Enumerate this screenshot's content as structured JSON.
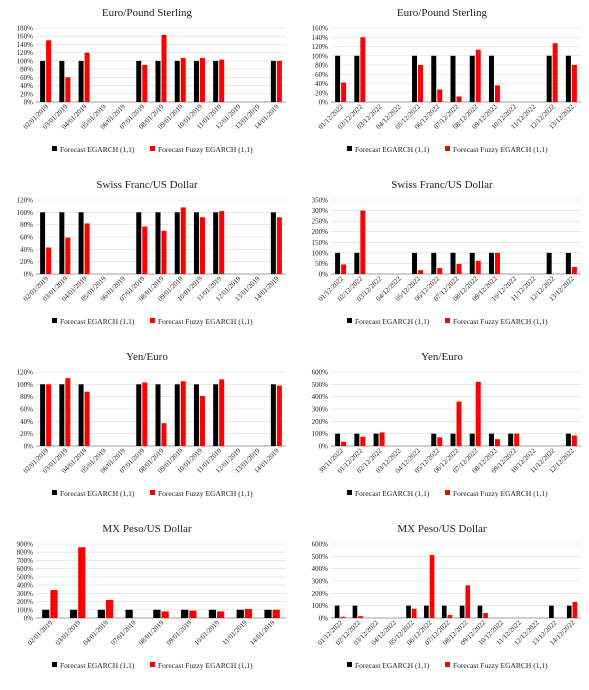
{
  "colors": {
    "egarch": "#000000",
    "fuzzy": "#ff0000",
    "grid": "#d9d9d9",
    "axis": "#7f7f7f"
  },
  "chart_data": [
    {
      "type": "bar",
      "title": "Euro/Pound Sterling",
      "categories": [
        "02/01/2019",
        "03/01/2019",
        "04/01/2019",
        "05/01/2019",
        "06/01/2019",
        "07/01/2019",
        "08/01/2019",
        "09/01/2019",
        "10/01/2019",
        "11/01/2019",
        "12/01/2019",
        "13/01/2019",
        "14/01/2019"
      ],
      "yticks": [
        "0%",
        "20%",
        "40%",
        "60%",
        "80%",
        "100%",
        "120%",
        "140%",
        "160%",
        "180%"
      ],
      "ylim": [
        0,
        180
      ],
      "series": [
        {
          "name": "Forecast EGARCH (1,1)",
          "values": [
            100,
            100,
            100,
            null,
            null,
            100,
            100,
            100,
            100,
            100,
            null,
            null,
            100
          ]
        },
        {
          "name": "Forecast Fuzzy EGARCH (1,1)",
          "values": [
            150,
            60,
            120,
            null,
            null,
            90,
            163,
            107,
            107,
            103,
            null,
            null,
            100
          ]
        }
      ],
      "legend": "bottom"
    },
    {
      "type": "bar",
      "title": "Euro/Pound Sterling",
      "categories": [
        "01/12/2022",
        "02/12/2022",
        "03/12/2022",
        "04/12/2022",
        "05/12/2022",
        "06/12/2022",
        "07/12/2022",
        "08/12/2022",
        "09/12/2022",
        "10/12/2022",
        "11/12/2022",
        "12/12/2022",
        "13/12/2022"
      ],
      "yticks": [
        "0%",
        "20%",
        "40%",
        "60%",
        "80%",
        "100%",
        "120%",
        "140%",
        "160%"
      ],
      "ylim": [
        0,
        160
      ],
      "series": [
        {
          "name": "Forecast EGARCH (1,1)",
          "values": [
            100,
            100,
            null,
            null,
            100,
            100,
            100,
            100,
            100,
            null,
            null,
            100,
            100
          ]
        },
        {
          "name": "Forecast Fuzzy EGARCH (1,1)",
          "values": [
            42,
            140,
            null,
            null,
            80,
            27,
            12,
            113,
            36,
            null,
            null,
            127,
            80
          ]
        }
      ],
      "legend": "bottom"
    },
    {
      "type": "bar",
      "title": "Swiss Franc/US Dollar",
      "categories": [
        "02/01/2019",
        "03/01/2019",
        "04/01/2019",
        "05/01/2019",
        "06/01/2019",
        "07/01/2019",
        "08/01/2019",
        "09/01/2019",
        "10/01/2019",
        "11/01/2019",
        "12/01/2019",
        "13/01/2019",
        "14/01/2019"
      ],
      "yticks": [
        "0%",
        "20%",
        "40%",
        "60%",
        "80%",
        "100%",
        "120%"
      ],
      "ylim": [
        0,
        120
      ],
      "series": [
        {
          "name": "Forecast EGARCH (1,1)",
          "values": [
            100,
            100,
            100,
            null,
            null,
            100,
            100,
            100,
            100,
            100,
            null,
            null,
            100
          ]
        },
        {
          "name": "Forecast Fuzzy EGARCH (1,1)",
          "values": [
            43,
            59,
            82,
            null,
            null,
            77,
            70,
            108,
            92,
            102,
            null,
            null,
            92
          ]
        }
      ],
      "legend": "bottom"
    },
    {
      "type": "bar",
      "title": "Swiss Franc/US Dollar",
      "categories": [
        "01/12/2022",
        "02/12/2022",
        "03/12/2022",
        "04/12/2022",
        "05/12/2022",
        "06/12/2022",
        "07/12/2022",
        "08/12/2022",
        "09/12/2022",
        "10/12/2022",
        "11/12/2022",
        "12/12/2022",
        "13/12/2022"
      ],
      "yticks": [
        "0%",
        "50%",
        "100%",
        "150%",
        "200%",
        "250%",
        "300%",
        "350%"
      ],
      "ylim": [
        0,
        350
      ],
      "series": [
        {
          "name": "Forecast EGARCH (1,1)",
          "values": [
            100,
            100,
            null,
            null,
            100,
            100,
            100,
            100,
            100,
            null,
            null,
            100,
            100
          ]
        },
        {
          "name": "Forecast Fuzzy EGARCH (1,1)",
          "values": [
            45,
            300,
            null,
            null,
            18,
            28,
            47,
            62,
            100,
            null,
            null,
            null,
            33
          ]
        }
      ],
      "legend": "bottom"
    },
    {
      "type": "bar",
      "title": "Yen/Euro",
      "categories": [
        "02/01/2019",
        "03/01/2019",
        "04/01/2019",
        "05/01/2019",
        "06/01/2019",
        "07/01/2019",
        "08/01/2019",
        "09/01/2019",
        "10/01/2019",
        "11/01/2019",
        "12/01/2019",
        "13/01/2019",
        "14/01/2019"
      ],
      "yticks": [
        "0%",
        "20%",
        "40%",
        "60%",
        "80%",
        "100%",
        "120%"
      ],
      "ylim": [
        0,
        120
      ],
      "series": [
        {
          "name": "Forecast EGARCH (1,1)",
          "values": [
            100,
            100,
            100,
            null,
            null,
            100,
            100,
            100,
            100,
            100,
            null,
            null,
            100
          ]
        },
        {
          "name": "Forecast Fuzzy EGARCH (1,1)",
          "values": [
            100,
            110,
            88,
            null,
            null,
            103,
            37,
            105,
            81,
            108,
            null,
            null,
            98
          ]
        }
      ],
      "legend": "bottom"
    },
    {
      "type": "bar",
      "title": "Yen/Euro",
      "categories": [
        "30/11/2022",
        "01/12/2022",
        "02/12/2022",
        "03/12/2022",
        "04/12/2022",
        "05/12/2022",
        "06/12/2022",
        "07/12/2022",
        "08/12/2022",
        "09/12/2022",
        "10/12/2022",
        "11/12/2022",
        "12/12/2022"
      ],
      "yticks": [
        "0%",
        "100%",
        "200%",
        "300%",
        "400%",
        "500%",
        "600%"
      ],
      "ylim": [
        0,
        600
      ],
      "series": [
        {
          "name": "Forecast EGARCH (1,1)",
          "values": [
            100,
            100,
            100,
            null,
            null,
            100,
            100,
            100,
            100,
            100,
            null,
            null,
            100
          ]
        },
        {
          "name": "Forecast Fuzzy EGARCH (1,1)",
          "values": [
            35,
            75,
            110,
            null,
            null,
            70,
            360,
            520,
            55,
            100,
            null,
            null,
            85
          ]
        }
      ],
      "legend": "bottom"
    },
    {
      "type": "bar",
      "title": "MX Peso/US Dollar",
      "categories": [
        "02/01/2019",
        "03/01/2019",
        "04/01/2019",
        "07/01/2019",
        "08/01/2019",
        "09/01/2019",
        "10/01/2019",
        "11/01/2019",
        "14/01/2019"
      ],
      "yticks": [
        "0%",
        "100%",
        "200%",
        "300%",
        "400%",
        "500%",
        "600%",
        "700%",
        "800%",
        "900%"
      ],
      "ylim": [
        0,
        900
      ],
      "series": [
        {
          "name": "Forecast EGARCH (1,1)",
          "values": [
            100,
            100,
            100,
            100,
            100,
            100,
            100,
            100,
            100
          ]
        },
        {
          "name": "Forecast Fuzzy EGARCH (1,1)",
          "values": [
            340,
            860,
            220,
            null,
            80,
            90,
            80,
            110,
            100
          ]
        }
      ],
      "legend": "bottom"
    },
    {
      "type": "bar",
      "title": "MX Peso/US Dollar",
      "categories": [
        "01/12/2022",
        "02/12/2022",
        "03/12/2022",
        "04/12/2022",
        "05/12/2022",
        "06/12/2022",
        "07/12/2022",
        "08/12/2022",
        "09/12/2022",
        "10/12/2022",
        "11/12/2022",
        "12/12/2022",
        "13/12/2022",
        "14/12/2022"
      ],
      "yticks": [
        "0%",
        "100%",
        "200%",
        "300%",
        "400%",
        "500%",
        "600%"
      ],
      "ylim": [
        0,
        600
      ],
      "series": [
        {
          "name": "Forecast EGARCH (1,1)",
          "values": [
            100,
            100,
            null,
            null,
            100,
            100,
            100,
            100,
            100,
            null,
            null,
            null,
            100,
            100
          ]
        },
        {
          "name": "Forecast Fuzzy EGARCH (1,1)",
          "values": [
            10,
            15,
            null,
            null,
            75,
            510,
            25,
            265,
            40,
            null,
            null,
            null,
            null,
            130
          ]
        }
      ],
      "legend": "bottom"
    }
  ]
}
